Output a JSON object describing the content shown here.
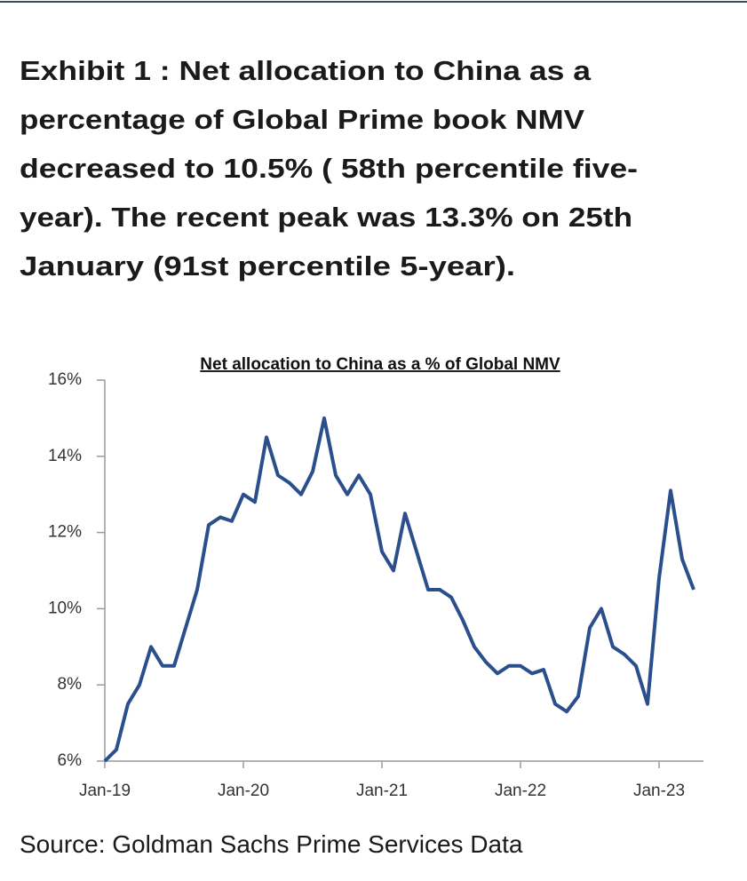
{
  "chart_data": {
    "type": "line",
    "heading": [
      "Exhibit 1 : Net allocation to China as a",
      "percentage of Global Prime book NMV",
      "decreased to 10.5% ( 58th percentile five-",
      "year). The recent peak was 13.3% on 25th",
      "January (91st percentile 5-year)."
    ],
    "title": "Net allocation  to China as a % of Global NMV",
    "source": "Source: Goldman Sachs Prime Services Data",
    "x": [
      "Jan-19",
      null,
      null,
      null,
      null,
      null,
      null,
      null,
      null,
      null,
      null,
      null,
      "Jan-20",
      null,
      null,
      null,
      null,
      null,
      null,
      null,
      null,
      null,
      null,
      null,
      "Jan-21",
      null,
      null,
      null,
      null,
      null,
      null,
      null,
      null,
      null,
      null,
      null,
      "Jan-22",
      null,
      null,
      null,
      null,
      null,
      null,
      null,
      null,
      null,
      null,
      null,
      "Jan-23",
      null,
      null,
      null
    ],
    "series": [
      {
        "color": "#2b4f8c",
        "values": [
          6.0,
          6.3,
          7.5,
          8.0,
          9.0,
          8.5,
          8.5,
          9.5,
          10.5,
          12.2,
          12.4,
          12.3,
          13.0,
          12.8,
          14.5,
          13.5,
          13.3,
          13.0,
          13.6,
          15.0,
          13.5,
          13.0,
          13.5,
          13.0,
          11.5,
          11.0,
          12.5,
          11.5,
          10.5,
          10.5,
          10.3,
          9.7,
          9.0,
          8.6,
          8.3,
          8.5,
          8.5,
          8.3,
          8.4,
          7.5,
          7.3,
          7.7,
          9.5,
          10.0,
          9.0,
          8.8,
          8.5,
          7.5,
          10.8,
          13.1,
          11.3,
          10.5
        ]
      }
    ],
    "ylim": [
      6,
      16
    ],
    "yticks": [
      {
        "value": 6,
        "label": "6%"
      },
      {
        "value": 8,
        "label": "8%"
      },
      {
        "value": 10,
        "label": "10%"
      },
      {
        "value": 12,
        "label": "12%"
      },
      {
        "value": 14,
        "label": "14%"
      },
      {
        "value": 16,
        "label": "16%"
      }
    ]
  }
}
